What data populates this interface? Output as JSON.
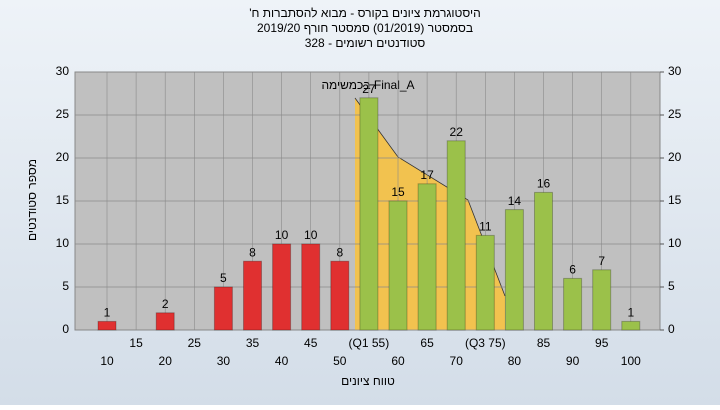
{
  "chart_data": {
    "type": "bar",
    "title": [
      "היסטוגרמת ציונים בקורס - מבוא להסתברות ח'",
      "בסמסטר (01/2019) סמסטר חורף 2019/20",
      "סטודנטים רשומים - 328"
    ],
    "annotation": "בכמשימה Final_A",
    "x_label": "טווח ציונים",
    "y_label": "מספר סטודנטים",
    "categories": [
      "10",
      "15",
      "20",
      "25",
      "30",
      "35",
      "40",
      "45",
      "50",
      "(Q1 55)",
      "60",
      "65",
      "70",
      "(Q3 75)",
      "80",
      "85",
      "90",
      "95",
      "100"
    ],
    "values": [
      1,
      0,
      2,
      0,
      5,
      8,
      10,
      10,
      8,
      27,
      15,
      17,
      22,
      11,
      14,
      16,
      6,
      7,
      1
    ],
    "colors": {
      "low": "#e03030",
      "high": "#9bc14a"
    },
    "color_split": 9,
    "ylim": [
      0,
      30
    ],
    "yticks": [
      0,
      5,
      10,
      15,
      20,
      25,
      30
    ],
    "y2lim": [
      0,
      30
    ],
    "y2ticks": [
      0,
      5,
      10,
      15,
      20,
      25,
      30
    ],
    "grid": true
  }
}
